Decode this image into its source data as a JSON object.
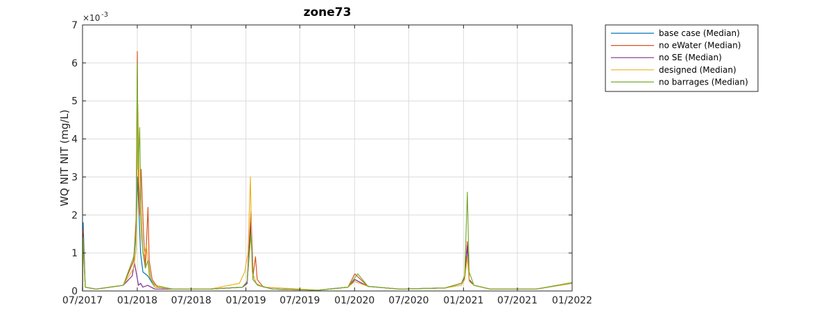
{
  "chart_data": {
    "type": "line",
    "title": "zone73",
    "ylabel": "WQ NIT NIT (mg/L)",
    "xlabel": "",
    "y_exponent_label": "×10",
    "y_exponent_power": "-3",
    "ylim": [
      0,
      7
    ],
    "y_ticks": [
      "0",
      "1",
      "2",
      "3",
      "4",
      "5",
      "6",
      "7"
    ],
    "xlim": [
      "2017-07-01",
      "2022-01-01"
    ],
    "x_ticks": [
      {
        "date": "2017-07-01",
        "label": "07/2017"
      },
      {
        "date": "2018-01-01",
        "label": "01/2018"
      },
      {
        "date": "2018-07-01",
        "label": "07/2018"
      },
      {
        "date": "2019-01-01",
        "label": "01/2019"
      },
      {
        "date": "2019-07-01",
        "label": "07/2019"
      },
      {
        "date": "2020-01-01",
        "label": "01/2020"
      },
      {
        "date": "2020-07-01",
        "label": "07/2020"
      },
      {
        "date": "2021-01-01",
        "label": "01/2021"
      },
      {
        "date": "2021-07-01",
        "label": "07/2021"
      },
      {
        "date": "2022-01-01",
        "label": "01/2022"
      }
    ],
    "grid": true,
    "legend_position": "outside-top-right",
    "series": [
      {
        "name": "base case (Median)",
        "color": "#0072BD",
        "x": [
          "2017-07-01",
          "2017-07-03",
          "2017-07-10",
          "2017-08-15",
          "2017-10-01",
          "2017-11-15",
          "2017-12-20",
          "2017-12-28",
          "2018-01-02",
          "2018-01-06",
          "2018-01-12",
          "2018-01-20",
          "2018-02-05",
          "2018-03-01",
          "2018-05-01",
          "2018-09-01",
          "2018-12-20",
          "2019-01-05",
          "2019-01-18",
          "2019-01-25",
          "2019-02-10",
          "2019-04-01",
          "2019-09-01",
          "2019-12-10",
          "2020-01-02",
          "2020-02-15",
          "2020-06-01",
          "2020-11-01",
          "2020-12-25",
          "2021-01-05",
          "2021-01-14",
          "2021-01-20",
          "2021-02-05",
          "2021-04-01",
          "2021-09-01",
          "2021-12-31"
        ],
        "values": [
          0.0,
          1.8,
          0.1,
          0.05,
          0.1,
          0.15,
          0.8,
          1.5,
          3.0,
          2.2,
          1.0,
          0.5,
          0.4,
          0.1,
          0.05,
          0.05,
          0.1,
          0.2,
          1.6,
          0.3,
          0.15,
          0.05,
          0.02,
          0.1,
          0.3,
          0.12,
          0.05,
          0.08,
          0.2,
          0.35,
          1.2,
          0.3,
          0.15,
          0.05,
          0.05,
          0.2
        ]
      },
      {
        "name": "no eWater (Median)",
        "color": "#D95319",
        "x": [
          "2017-07-01",
          "2017-07-03",
          "2017-07-10",
          "2017-08-15",
          "2017-10-01",
          "2017-11-15",
          "2017-12-20",
          "2017-12-28",
          "2018-01-01",
          "2018-01-03",
          "2018-01-08",
          "2018-01-14",
          "2018-01-22",
          "2018-01-28",
          "2018-02-06",
          "2018-02-10",
          "2018-02-20",
          "2018-03-10",
          "2018-05-01",
          "2018-09-01",
          "2018-12-20",
          "2019-01-05",
          "2019-01-18",
          "2019-01-25",
          "2019-02-02",
          "2019-02-08",
          "2019-03-01",
          "2019-09-01",
          "2019-12-10",
          "2020-01-02",
          "2020-02-15",
          "2020-06-01",
          "2020-11-01",
          "2020-12-25",
          "2021-01-05",
          "2021-01-14",
          "2021-01-20",
          "2021-02-05",
          "2021-04-01",
          "2021-09-01",
          "2021-12-31"
        ],
        "values": [
          0.0,
          1.6,
          0.1,
          0.05,
          0.1,
          0.15,
          0.8,
          1.9,
          6.3,
          3.8,
          2.0,
          3.2,
          1.5,
          0.6,
          2.2,
          0.8,
          0.3,
          0.1,
          0.05,
          0.05,
          0.1,
          0.2,
          2.1,
          0.4,
          0.9,
          0.3,
          0.1,
          0.02,
          0.1,
          0.45,
          0.12,
          0.05,
          0.08,
          0.2,
          0.4,
          1.3,
          0.3,
          0.15,
          0.05,
          0.05,
          0.2
        ]
      },
      {
        "name": "no SE (Median)",
        "color": "#7E2F8E",
        "x": [
          "2017-07-01",
          "2017-07-03",
          "2017-07-10",
          "2017-08-15",
          "2017-10-01",
          "2017-11-15",
          "2017-12-15",
          "2017-12-22",
          "2017-12-28",
          "2018-01-05",
          "2018-01-12",
          "2018-01-20",
          "2018-02-05",
          "2018-03-01",
          "2018-05-01",
          "2018-09-01",
          "2018-12-20",
          "2019-01-05",
          "2019-01-18",
          "2019-01-25",
          "2019-02-10",
          "2019-04-01",
          "2019-09-01",
          "2019-12-10",
          "2020-01-02",
          "2020-02-15",
          "2020-06-01",
          "2020-11-01",
          "2020-12-25",
          "2021-01-05",
          "2021-01-14",
          "2021-01-20",
          "2021-02-05",
          "2021-04-01",
          "2021-09-01",
          "2021-12-31"
        ],
        "values": [
          0.0,
          1.5,
          0.1,
          0.05,
          0.1,
          0.15,
          0.4,
          0.75,
          0.5,
          0.15,
          0.2,
          0.1,
          0.15,
          0.05,
          0.05,
          0.05,
          0.1,
          0.2,
          1.8,
          0.3,
          0.15,
          0.05,
          0.02,
          0.1,
          0.3,
          0.12,
          0.05,
          0.08,
          0.2,
          0.35,
          1.2,
          0.3,
          0.15,
          0.05,
          0.05,
          0.2
        ]
      },
      {
        "name": "designed (Median)",
        "color": "#EDB120",
        "x": [
          "2017-07-01",
          "2017-07-03",
          "2017-07-10",
          "2017-08-15",
          "2017-10-01",
          "2017-11-15",
          "2017-12-20",
          "2017-12-28",
          "2018-01-03",
          "2018-01-08",
          "2018-01-15",
          "2018-01-22",
          "2018-02-01",
          "2018-02-10",
          "2018-03-01",
          "2018-05-01",
          "2018-09-01",
          "2018-12-10",
          "2018-12-28",
          "2019-01-08",
          "2019-01-16",
          "2019-01-22",
          "2019-02-05",
          "2019-03-01",
          "2019-09-01",
          "2019-12-10",
          "2020-01-02",
          "2020-02-15",
          "2020-06-01",
          "2020-11-01",
          "2020-12-25",
          "2021-01-05",
          "2021-01-14",
          "2021-01-20",
          "2021-02-05",
          "2021-04-01",
          "2021-09-01",
          "2021-12-31"
        ],
        "values": [
          0.0,
          1.2,
          0.1,
          0.05,
          0.1,
          0.15,
          0.6,
          1.1,
          4.9,
          2.6,
          1.4,
          0.9,
          1.2,
          0.4,
          0.1,
          0.05,
          0.05,
          0.2,
          0.5,
          1.0,
          3.0,
          0.5,
          0.2,
          0.1,
          0.02,
          0.1,
          0.25,
          0.12,
          0.05,
          0.08,
          0.15,
          0.3,
          0.9,
          0.25,
          0.15,
          0.05,
          0.05,
          0.2
        ]
      },
      {
        "name": "no barrages (Median)",
        "color": "#77AC30",
        "x": [
          "2017-07-01",
          "2017-07-03",
          "2017-07-10",
          "2017-08-15",
          "2017-10-01",
          "2017-11-15",
          "2017-12-20",
          "2017-12-28",
          "2018-01-01",
          "2018-01-04",
          "2018-01-09",
          "2018-01-14",
          "2018-01-20",
          "2018-01-28",
          "2018-02-06",
          "2018-02-15",
          "2018-03-01",
          "2018-05-01",
          "2018-09-01",
          "2018-12-20",
          "2019-01-05",
          "2019-01-18",
          "2019-01-25",
          "2019-02-10",
          "2019-04-01",
          "2019-09-01",
          "2019-12-10",
          "2020-01-02",
          "2020-01-12",
          "2020-02-15",
          "2020-06-01",
          "2020-11-01",
          "2020-12-25",
          "2021-01-05",
          "2021-01-14",
          "2021-01-20",
          "2021-02-05",
          "2021-04-01",
          "2021-09-01",
          "2021-12-31"
        ],
        "values": [
          0.0,
          1.4,
          0.1,
          0.05,
          0.1,
          0.15,
          0.9,
          1.6,
          6.0,
          3.2,
          4.3,
          2.0,
          1.0,
          0.6,
          0.8,
          0.3,
          0.15,
          0.05,
          0.05,
          0.1,
          0.25,
          1.5,
          0.3,
          0.15,
          0.05,
          0.02,
          0.1,
          0.35,
          0.45,
          0.12,
          0.05,
          0.08,
          0.2,
          0.4,
          2.6,
          0.5,
          0.15,
          0.05,
          0.05,
          0.22
        ]
      }
    ]
  }
}
